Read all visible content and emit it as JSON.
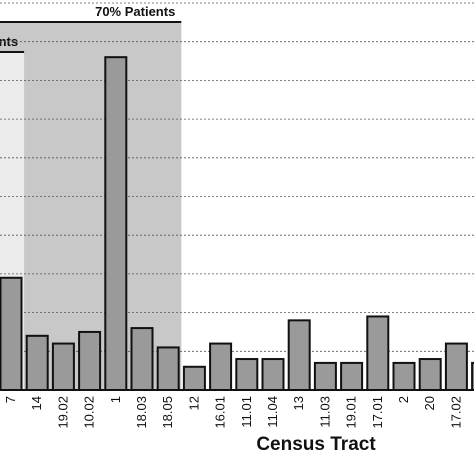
{
  "chart_data": {
    "type": "bar",
    "xlabel": "Census Tract",
    "ylabel": "",
    "ylim": [
      0,
      100
    ],
    "grid": "horizontal dashed",
    "categories": [
      "7",
      "14",
      "19.02",
      "10.02",
      "1",
      "18.03",
      "18.05",
      "12",
      "16.01",
      "11.01",
      "11.04",
      "13",
      "11.03",
      "19.01",
      "17.01",
      "2",
      "20",
      "17.02",
      ""
    ],
    "values": [
      29,
      14,
      12,
      15,
      86,
      16,
      11,
      6,
      12,
      8,
      8,
      18,
      7,
      7,
      19,
      7,
      8,
      12,
      7
    ],
    "bands": [
      {
        "label": "70% Patients",
        "from": "start",
        "to": "18.05",
        "fill": "#c8c8c8"
      },
      {
        "label": "nts",
        "from": "start",
        "to": "7",
        "fill": "#ebebeb"
      }
    ],
    "colors": {
      "bar": "#9a9a9a",
      "bar_stroke": "#111111",
      "grid": "#555555"
    }
  }
}
